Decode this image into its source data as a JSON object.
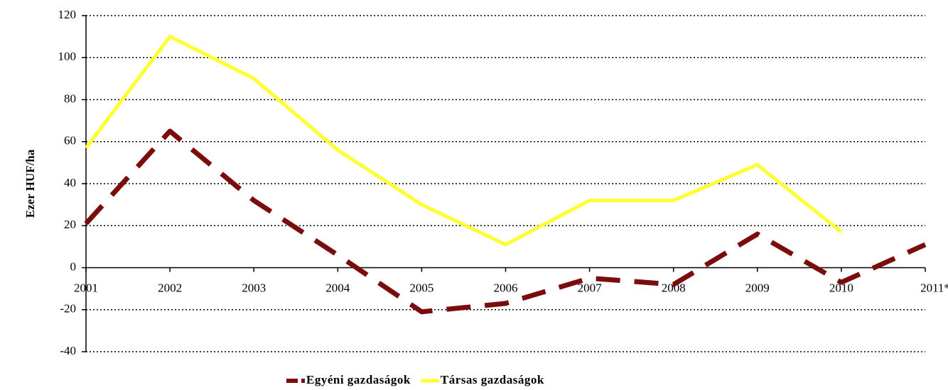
{
  "chart_data": {
    "type": "line",
    "y_label": "Ezer HUF/ha",
    "categories": [
      "2001",
      "2002",
      "2003",
      "2004",
      "2005",
      "2006",
      "2007",
      "2008",
      "2009",
      "2010",
      "2011*"
    ],
    "series": [
      {
        "name": "Egyéni gazdaságok",
        "color": "#7b0c0c",
        "dashed": true,
        "values": [
          21,
          65,
          32,
          6,
          -21,
          -17,
          -5,
          -8,
          16,
          -7,
          11
        ]
      },
      {
        "name": "Társas gazdaságok",
        "color": "#ffff33",
        "dashed": false,
        "values": [
          57,
          110,
          90,
          56,
          30,
          11,
          32,
          32,
          49,
          17,
          null
        ]
      }
    ],
    "ylim": [
      -40,
      120
    ],
    "yticks": [
      -40,
      -20,
      0,
      20,
      40,
      60,
      80,
      100,
      120
    ],
    "grid": true,
    "legend": "bottom"
  }
}
